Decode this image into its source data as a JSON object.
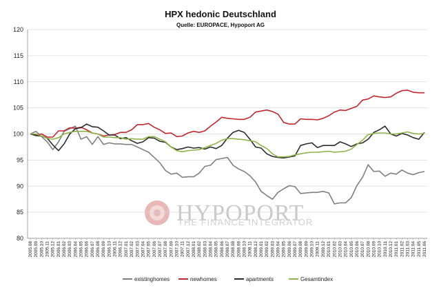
{
  "watermark": {
    "brand": "HYPOPORT",
    "tagline": "THE FINANCE INTEGRATOR"
  },
  "chart_data": {
    "type": "line",
    "title": "HPX hedonic Deutschland",
    "subtitle": "Quelle: EUROPACE,  Hypoport AG",
    "xlabel": "",
    "ylabel": "",
    "ylim": [
      80,
      120
    ],
    "yticks": [
      80,
      85,
      90,
      95,
      100,
      105,
      110,
      115,
      120
    ],
    "grid": true,
    "legend_position": "bottom",
    "categories": [
      "2005.08",
      "2005.09",
      "2005.10",
      "2005.11",
      "2005.12",
      "2006.01",
      "2006.02",
      "2006.03",
      "2006.04",
      "2006.05",
      "2006.06",
      "2006.07",
      "2006.08",
      "2006.09",
      "2006.10",
      "2006.11",
      "2006.12",
      "2007.01",
      "2007.02",
      "2007.03",
      "2007.04",
      "2007.05",
      "2007.06",
      "2007.07",
      "2007.08",
      "2007.09",
      "2007.10",
      "2007.11",
      "2007.12",
      "2008.01",
      "2008.02",
      "2008.03",
      "2008.04",
      "2008.05",
      "2008.06",
      "2008.07",
      "2008.08",
      "2008.09",
      "2008.10",
      "2008.11",
      "2008.12",
      "2009.01",
      "2009.02",
      "2009.03",
      "2009.04",
      "2009.05",
      "2009.06",
      "2009.07",
      "2009.08",
      "2009.09",
      "2009.10",
      "2009.11",
      "2009.12",
      "2010.01",
      "2010.02",
      "2010.03",
      "2010.04",
      "2010.05",
      "2010.06",
      "2010.07",
      "2010.08",
      "2010.09",
      "2010.10",
      "2010.11",
      "2010.12",
      "2011.01",
      "2011.02",
      "2011.03",
      "2011.04",
      "2011.05",
      "2011.06"
    ],
    "series": [
      {
        "name": "existinghomes",
        "color": "#7f7f7f",
        "values": [
          100,
          100.5,
          99.5,
          98.5,
          97,
          98.5,
          100.5,
          101,
          101.5,
          99,
          99.5,
          98,
          99.5,
          98,
          98.3,
          98.1,
          98.1,
          98,
          98,
          97.5,
          97,
          96.5,
          95.5,
          94.5,
          93,
          92.3,
          92.5,
          91.7,
          91.8,
          91.8,
          92.5,
          93.8,
          94,
          95.1,
          95.3,
          95.5,
          94,
          93.3,
          92.8,
          92,
          90.8,
          89,
          88.2,
          87.5,
          88.8,
          89.5,
          90.1,
          89.9,
          88.6,
          88.7,
          88.8,
          88.8,
          89,
          88.7,
          86.6,
          86.8,
          86.8,
          87.8,
          90.1,
          91.7,
          94.1,
          92.8,
          92.9,
          91.9,
          92.5,
          92.3,
          93.1,
          92.5,
          92.2,
          92.6,
          92.8
        ]
      },
      {
        "name": "newhomes",
        "color": "#c0272d",
        "values": [
          100,
          99.8,
          100,
          99.4,
          99.4,
          100.6,
          100.6,
          101.2,
          101.1,
          101.3,
          100.8,
          100.2,
          100,
          99.6,
          99.8,
          99.9,
          100.3,
          100.3,
          100.8,
          101.8,
          101.8,
          102,
          101.3,
          100.8,
          100.1,
          100.2,
          99.5,
          99.6,
          100.2,
          100.5,
          100.3,
          100.6,
          101.5,
          102.3,
          103.2,
          103,
          102.9,
          102.8,
          102.8,
          103.2,
          104.2,
          104.4,
          104.6,
          104.3,
          103.8,
          102.2,
          101.9,
          101.9,
          102.9,
          102.8,
          102.8,
          102.7,
          103,
          103.5,
          104.2,
          104.6,
          104.5,
          104.9,
          105.3,
          106.5,
          106.7,
          107.3,
          107.1,
          107,
          107.1,
          107.8,
          108.3,
          108.4,
          108,
          107.9,
          107.9
        ]
      },
      {
        "name": "apartments",
        "color": "#2b2b2b",
        "values": [
          100,
          99.7,
          99.6,
          99.2,
          97.9,
          96.8,
          98.1,
          100,
          101,
          101.2,
          101.9,
          101.4,
          101.3,
          100.6,
          99.8,
          99.8,
          99.1,
          99.3,
          98.7,
          98.2,
          98.5,
          99.3,
          99.2,
          98.6,
          98.4,
          97.5,
          97,
          97.2,
          97.5,
          97.3,
          97.4,
          97.1,
          97.5,
          97.2,
          97.8,
          99.2,
          100.3,
          100.7,
          100.3,
          99,
          97.5,
          97.3,
          96.2,
          95.7,
          95.5,
          95.4,
          95.6,
          95.8,
          97.8,
          98.1,
          98.3,
          97.4,
          97.8,
          97.8,
          97.8,
          98.5,
          98.1,
          97.6,
          98.1,
          98.3,
          99,
          100.3,
          100.8,
          101.5,
          100,
          99.6,
          100.1,
          99.8,
          99.3,
          99,
          100.3
        ]
      },
      {
        "name": "Gesamtindex",
        "color": "#8db34a",
        "values": [
          100,
          100,
          99.6,
          99.2,
          99,
          99.3,
          100,
          100.3,
          100.5,
          100.5,
          100.5,
          100.2,
          100,
          99.4,
          99.4,
          99.3,
          99.3,
          99,
          99.1,
          99,
          99,
          99.5,
          99.5,
          99,
          98.5,
          97.5,
          96.8,
          96.6,
          96.8,
          96.9,
          97,
          97.4,
          97.8,
          98.2,
          98.8,
          99.1,
          99.1,
          99,
          98.9,
          98.7,
          98.5,
          97.8,
          97.2,
          96.2,
          95.6,
          95.6,
          95.7,
          96,
          96.2,
          96.4,
          96.5,
          96.5,
          96.6,
          96.7,
          96.5,
          96.6,
          96.7,
          97.1,
          98,
          98.8,
          99.9,
          100.1,
          100.2,
          100.2,
          100,
          100,
          100.2,
          100.4,
          100.1,
          100,
          100.1
        ]
      }
    ]
  }
}
